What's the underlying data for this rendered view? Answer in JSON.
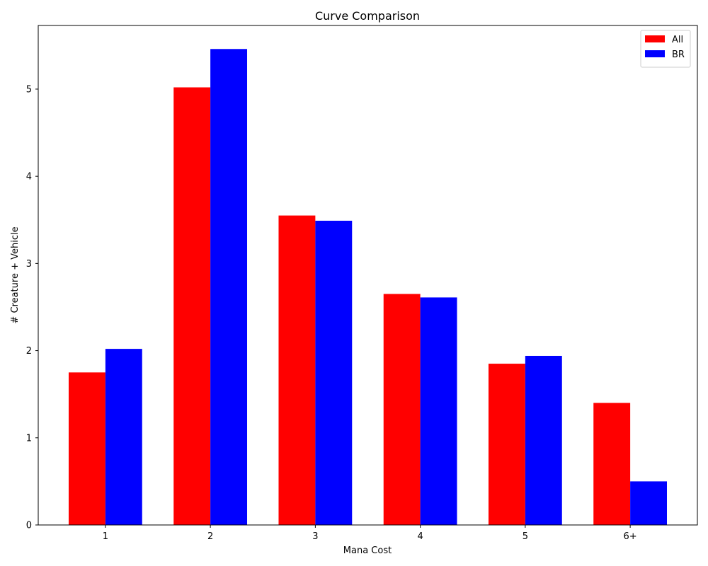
{
  "chart_data": {
    "type": "bar",
    "title": "Curve Comparison",
    "xlabel": "Mana Cost",
    "ylabel": "# Creature + Vehicle",
    "categories": [
      "1",
      "2",
      "3",
      "4",
      "5",
      "6+"
    ],
    "series": [
      {
        "name": "All",
        "color": "#ff0000",
        "values": [
          1.75,
          5.02,
          3.55,
          2.65,
          1.85,
          1.4
        ]
      },
      {
        "name": "BR",
        "color": "#0000ff",
        "values": [
          2.02,
          5.46,
          3.49,
          2.61,
          1.94,
          0.5
        ]
      }
    ],
    "ylim": [
      0,
      5.73
    ],
    "yticks": [
      0,
      1,
      2,
      3,
      4,
      5
    ],
    "grid": false,
    "legend_position": "top-right"
  }
}
